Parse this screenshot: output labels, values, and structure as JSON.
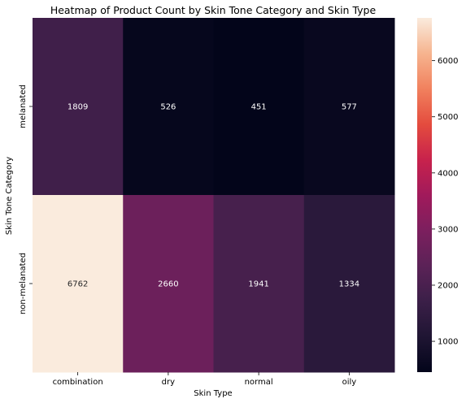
{
  "chart_data": {
    "type": "heatmap",
    "title": "Heatmap of Product Count by Skin Tone Category and Skin Type",
    "xlabel": "Skin Type",
    "ylabel": "Skin Tone Category",
    "x_categories": [
      "combination",
      "dry",
      "normal",
      "oily"
    ],
    "y_categories": [
      "melanated",
      "non-melanated"
    ],
    "values": [
      [
        1809,
        526,
        451,
        577
      ],
      [
        6762,
        2660,
        1941,
        1334
      ]
    ],
    "colormap": "rocket",
    "colorbar": {
      "range": [
        451,
        6762
      ],
      "ticks": [
        1000,
        2000,
        3000,
        4000,
        5000,
        6000
      ]
    },
    "annotations": true,
    "grid": false
  }
}
